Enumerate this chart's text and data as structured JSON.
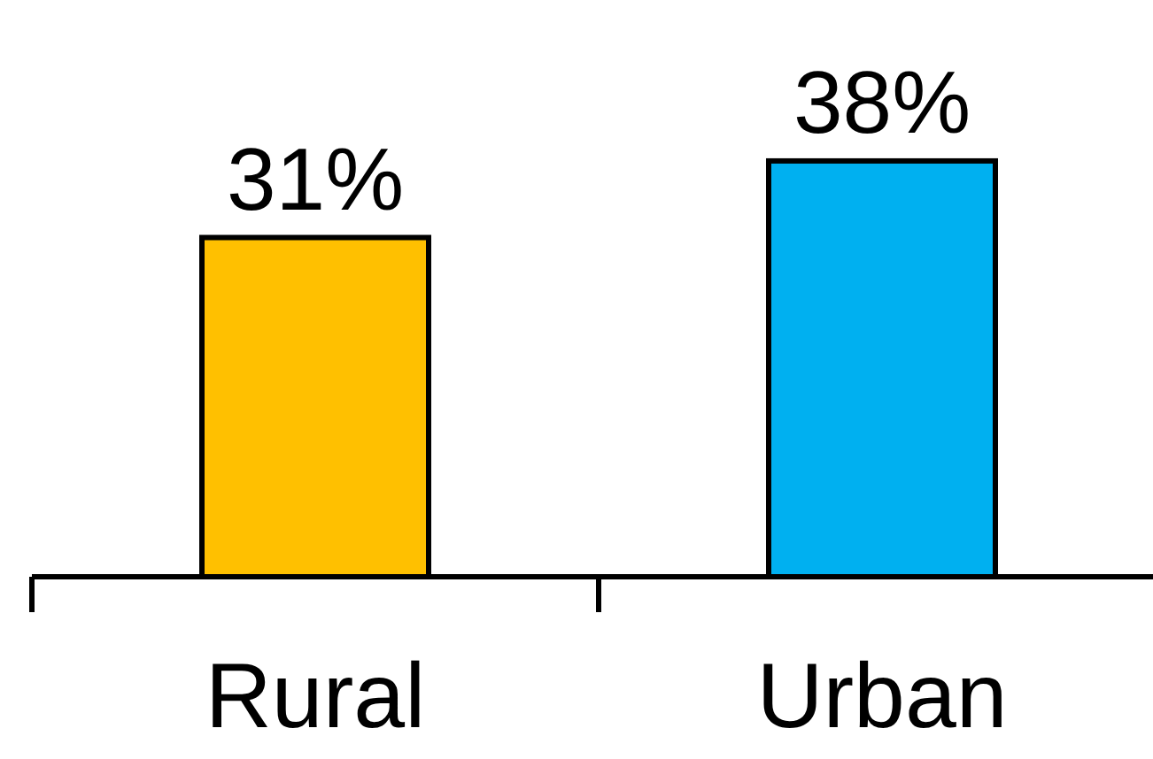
{
  "chart_data": {
    "type": "bar",
    "categories": [
      "Rural",
      "Urban"
    ],
    "values": [
      31,
      38
    ],
    "colors": [
      "#ffc000",
      "#00b0f0"
    ],
    "value_labels": [
      "31%",
      "38%"
    ]
  }
}
